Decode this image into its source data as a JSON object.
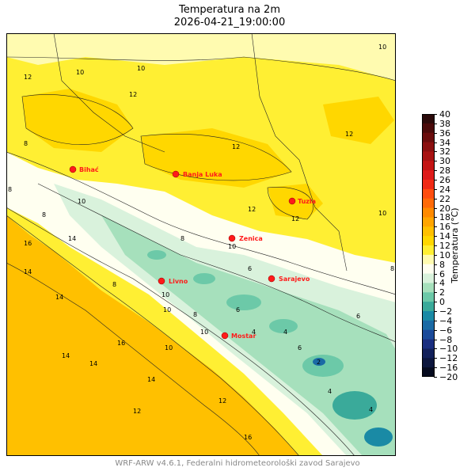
{
  "title": {
    "line1": "Temperatura na 2m",
    "line2": "2026-04-21_19:00:00"
  },
  "colorbar": {
    "label": "Temperatura (°C)",
    "ticks": [
      "40",
      "38",
      "36",
      "34",
      "32",
      "30",
      "28",
      "26",
      "24",
      "22",
      "20",
      "18",
      "16",
      "14",
      "12",
      "10",
      "8",
      "6",
      "4",
      "2",
      "0",
      "−2",
      "−4",
      "−6",
      "−8",
      "−10",
      "−12",
      "−16",
      "−20"
    ],
    "colors": [
      "#2b0a0a",
      "#4a0a0a",
      "#6a0c0c",
      "#8b0f0f",
      "#a81212",
      "#c41414",
      "#de1a1a",
      "#f02a15",
      "#ff4d0f",
      "#ff6a08",
      "#ff8a00",
      "#ffa500",
      "#ffc000",
      "#ffd700",
      "#ffef33",
      "#fffbb0",
      "#fffff0",
      "#d9f2dc",
      "#a6e0bc",
      "#6cc9a8",
      "#3aaa9a",
      "#1a8aa5",
      "#1a6aa5",
      "#1a4a9a",
      "#1a2e80",
      "#12205a",
      "#0c163d",
      "#050a1e"
    ]
  },
  "cities": [
    {
      "name": "Bihać"
    },
    {
      "name": "Banja Luka"
    },
    {
      "name": "Tuzla"
    },
    {
      "name": "Zenica"
    },
    {
      "name": "Sarajevo"
    },
    {
      "name": "Livno"
    },
    {
      "name": "Mostar"
    }
  ],
  "contour_labels": [
    "10",
    "12",
    "10",
    "10",
    "12",
    "8",
    "12",
    "12",
    "8",
    "10",
    "12",
    "10",
    "12",
    "10",
    "8",
    "6",
    "8",
    "14",
    "16",
    "14",
    "10",
    "8",
    "6",
    "8",
    "10",
    "14",
    "16",
    "14",
    "14",
    "12",
    "6",
    "4",
    "4",
    "2",
    "4",
    "4",
    "6",
    "8",
    "10",
    "12",
    "14",
    "16",
    "10"
  ],
  "footer": "WRF-ARW v4.6.1, Federalni hidrometeorološki zavod Sarajevo"
}
